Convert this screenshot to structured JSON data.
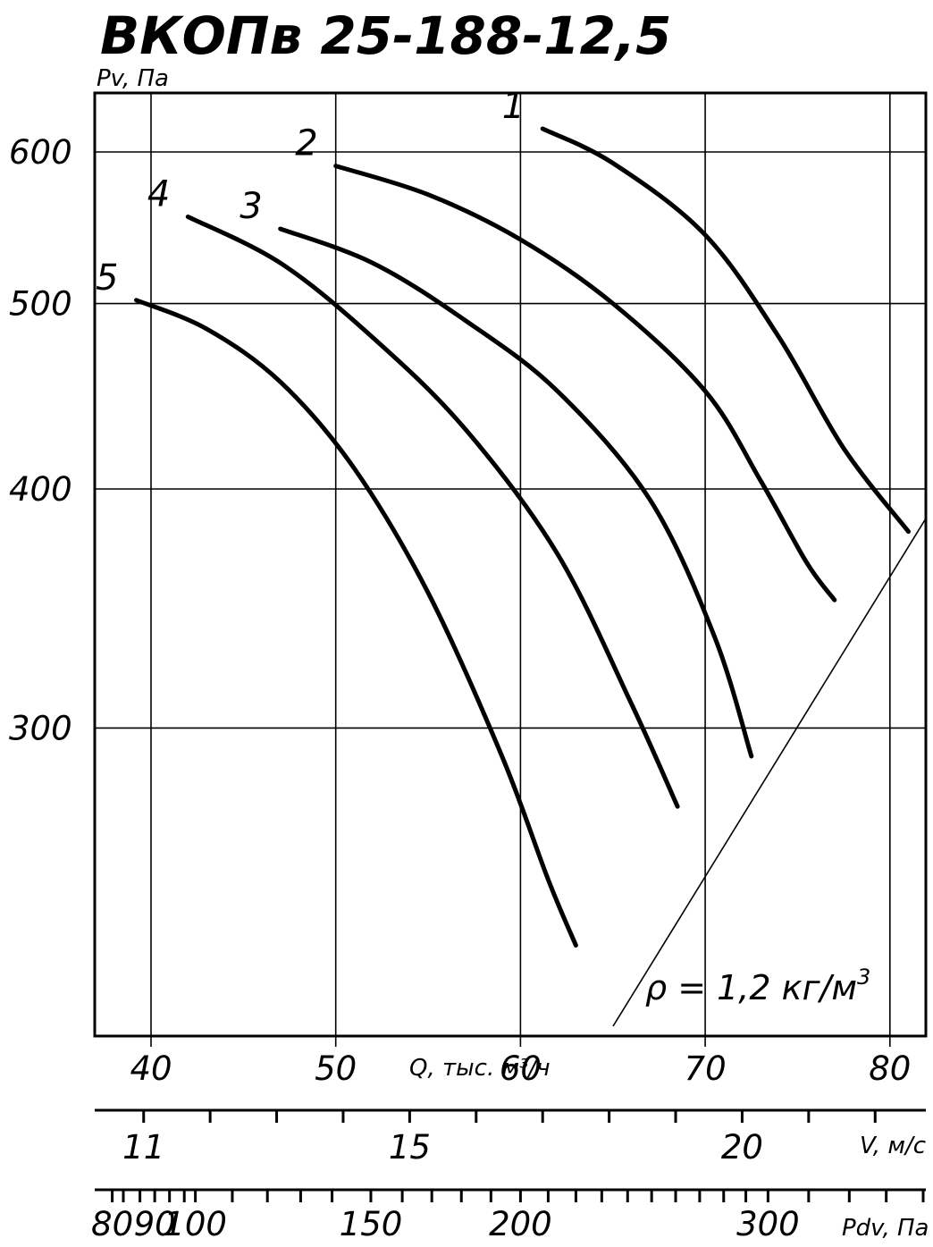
{
  "chart_data": {
    "type": "line",
    "title": "ВКОПв 25-188-12,5",
    "ylabel": "Pv, Па",
    "xlabel": "Q, тыс. м³/ч",
    "y_scale": "log",
    "ylim": [
      225,
      640
    ],
    "xlim": [
      39.2,
      84.0
    ],
    "x_ticks": [
      40,
      50,
      60,
      70,
      80
    ],
    "y_ticks": [
      300,
      400,
      500,
      600
    ],
    "grid": true,
    "series": [
      {
        "name": "1",
        "x": [
          61.2,
          65.0,
          70.0,
          74.0,
          77.5,
          81.0
        ],
        "y": [
          617,
          592,
          543,
          480,
          420,
          380
        ]
      },
      {
        "name": "2",
        "x": [
          50.0,
          55.0,
          60.0,
          65.0,
          70.0,
          73.0,
          75.5,
          77.0
        ],
        "y": [
          590,
          570,
          540,
          500,
          450,
          404,
          366,
          350
        ]
      },
      {
        "name": "3",
        "x": [
          47.0,
          52.0,
          57.0,
          62.0,
          67.0,
          70.5,
          72.5
        ],
        "y": [
          547,
          525,
          490,
          450,
          395,
          335,
          290
        ]
      },
      {
        "name": "4",
        "x": [
          42.0,
          47.0,
          52.0,
          57.0,
          62.0,
          66.0,
          68.5
        ],
        "y": [
          555,
          525,
          480,
          430,
          370,
          309,
          273
        ]
      },
      {
        "name": "5",
        "x": [
          39.2,
          43.0,
          47.0,
          51.0,
          55.0,
          59.0,
          61.5,
          63.0
        ],
        "y": [
          502,
          485,
          455,
          410,
          353,
          290,
          250,
          231
        ]
      }
    ],
    "density_label": "ρ = 1,2 кг/м",
    "density_label_sup": "3",
    "velocity_axis": {
      "label": "V, м/с",
      "ticks": [
        {
          "value": 11,
          "label": "11",
          "q": 39.6
        },
        {
          "value": 15,
          "label": "15",
          "q": 54.0
        },
        {
          "value": 20,
          "label": "20",
          "q": 72.0
        }
      ],
      "minor_q": [
        43.2,
        46.8,
        50.4,
        57.6,
        61.2,
        64.8,
        68.4,
        75.6,
        79.2,
        82.8
      ]
    },
    "dynamic_pressure_axis": {
      "label": "Pdv, Па",
      "ticks": [
        {
          "value": 80,
          "label": "80",
          "q": 37.9
        },
        {
          "value": 90,
          "label": "90",
          "q": 40.2
        },
        {
          "value": 100,
          "label": "100",
          "q": 42.4
        },
        {
          "value": 150,
          "label": "150",
          "q": 51.9
        },
        {
          "value": 200,
          "label": "200",
          "q": 60.0
        },
        {
          "value": 300,
          "label": "300",
          "q": 73.4
        }
      ],
      "minor_q": [
        38.5,
        39.4,
        41.0,
        41.8,
        44.4,
        46.3,
        48.1,
        49.8,
        53.6,
        55.2,
        56.8,
        58.4,
        61.5,
        63.0,
        64.4,
        65.8,
        67.1,
        68.4,
        69.7,
        71.0,
        72.2,
        75.6,
        77.8,
        79.8,
        81.8,
        83.7
      ]
    }
  }
}
